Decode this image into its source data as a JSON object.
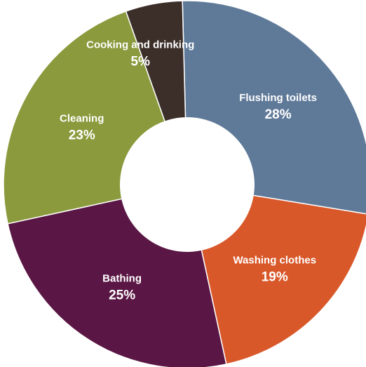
{
  "chart_data": {
    "type": "pie",
    "title": "",
    "donut": true,
    "start": "top, clockwise",
    "legend": "none",
    "slices": [
      {
        "label": "Flushing toilets",
        "value": 28,
        "value_label": "28%",
        "color": "#5f7a99"
      },
      {
        "label": "Washing clothes",
        "value": 19,
        "value_label": "19%",
        "color": "#d9582a"
      },
      {
        "label": "Bathing",
        "value": 25,
        "value_label": "25%",
        "color": "#5a1644"
      },
      {
        "label": "Cleaning",
        "value": 23,
        "value_label": "23%",
        "color": "#8a9a3c"
      },
      {
        "label": "Cooking and drinking",
        "value": 5,
        "value_label": "5%",
        "color": "#3c2f29"
      }
    ]
  }
}
